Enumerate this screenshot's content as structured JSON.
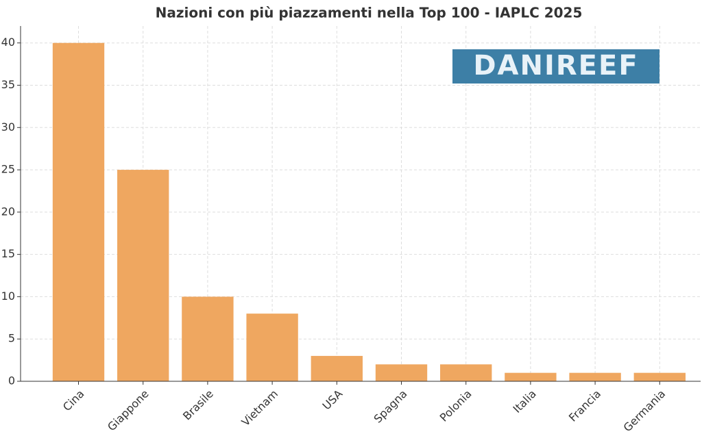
{
  "chart_data": {
    "type": "bar",
    "title": "Nazioni con più piazzamenti nella Top 100 - IAPLC 2025",
    "watermark": "DANIREEF",
    "categories": [
      "Cina",
      "Giappone",
      "Brasile",
      "Vietnam",
      "USA",
      "Spagna",
      "Polonia",
      "Italia",
      "Francia",
      "Germania"
    ],
    "values": [
      40,
      25,
      10,
      8,
      3,
      2,
      2,
      1,
      1,
      1
    ],
    "color": "#efa760",
    "ylim": [
      0,
      42
    ],
    "yticks": [
      0,
      5,
      10,
      15,
      20,
      25,
      30,
      35,
      40
    ],
    "grid": true
  }
}
